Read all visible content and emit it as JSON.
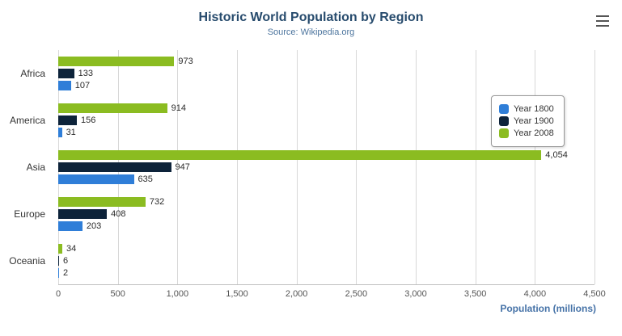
{
  "title": "Historic World Population by Region",
  "subtitle": "Source: Wikipedia.org",
  "export_menu": {
    "icon": "hamburger-icon"
  },
  "colors": {
    "title": "#274b6d",
    "subtitle": "#4d759e",
    "axis_title": "#4572a7",
    "gridline": "#d8d8d8"
  },
  "chart_data": {
    "type": "bar",
    "orientation": "horizontal",
    "title": "Historic World Population by Region",
    "subtitle": "Source: Wikipedia.org",
    "categories": [
      "Africa",
      "America",
      "Asia",
      "Europe",
      "Oceania"
    ],
    "series": [
      {
        "name": "Year 1800",
        "color": "#2f7ed8",
        "values": [
          107,
          31,
          635,
          203,
          2
        ]
      },
      {
        "name": "Year 1900",
        "color": "#0d233a",
        "values": [
          133,
          156,
          947,
          408,
          6
        ]
      },
      {
        "name": "Year 2008",
        "color": "#8bbc21",
        "values": [
          973,
          914,
          4054,
          732,
          34
        ]
      }
    ],
    "bar_order_top_to_bottom": [
      "Year 2008",
      "Year 1900",
      "Year 1800"
    ],
    "xlabel": "Population (millions)",
    "ylabel": "",
    "xlim": [
      0,
      4500
    ],
    "x_ticks": [
      0,
      500,
      1000,
      1500,
      2000,
      2500,
      3000,
      3500,
      4000,
      4500
    ],
    "grid": true,
    "legend_position": "right"
  }
}
